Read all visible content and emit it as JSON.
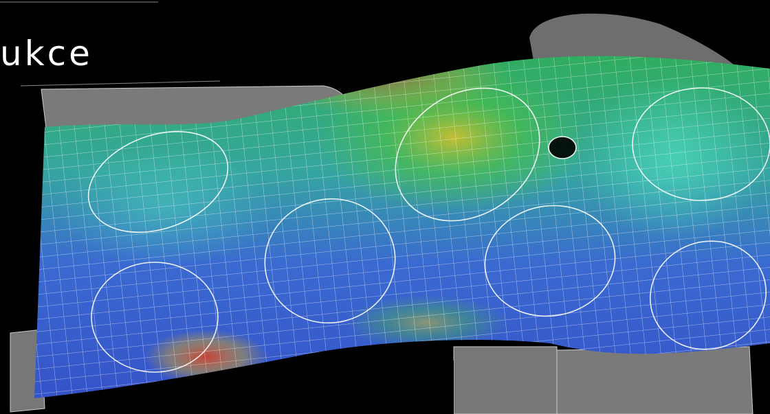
{
  "title": "ukce"
}
